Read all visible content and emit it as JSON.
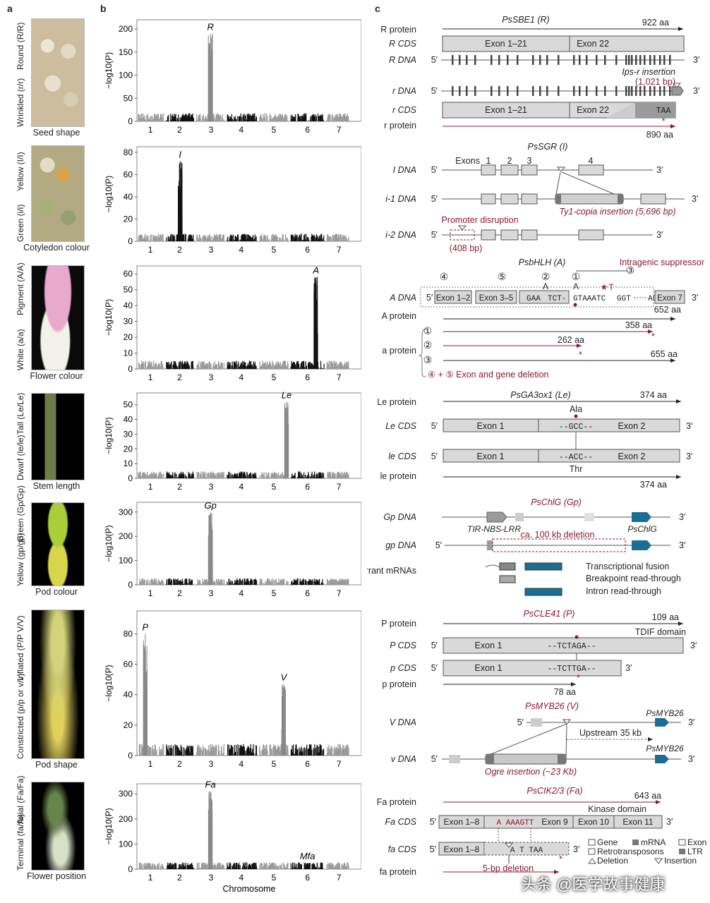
{
  "panel_letters": {
    "a": "a",
    "b": "b",
    "c": "c"
  },
  "traits": [
    {
      "genotype_top": "Round (R/R)",
      "genotype_bottom": "Wrinkled (r/r)",
      "caption": "Seed shape",
      "color": "#d7ccb4"
    },
    {
      "genotype_top": "Yellow (I/I)",
      "genotype_bottom": "Green (i/i)",
      "caption": "Cotyledon colour",
      "color": "#b9b27a"
    },
    {
      "genotype_top": "Pigment (A/A)",
      "genotype_bottom": "White (a/a)",
      "caption": "Flower colour",
      "color": "#1a1a1a"
    },
    {
      "genotype_top": "Tall (Le/Le)",
      "genotype_bottom": "Dwarf (le/le)",
      "caption": "Stem length",
      "color": "#000000"
    },
    {
      "genotype_top": "Green (Gp/Gp)",
      "genotype_bottom": "Yellow (gp/gp)",
      "caption": "Pod colour",
      "color": "#000000"
    },
    {
      "genotype_top": "Inflated (P/P V/V)",
      "genotype_bottom": "Constricted (p/p or v/v)",
      "caption": "Pod shape",
      "color": "#000000"
    },
    {
      "genotype_top": "Axial (Fa/Fa)",
      "genotype_bottom": "Terminal (fa/fa)",
      "caption": "Flower position",
      "color": "#000000"
    }
  ],
  "plots": {
    "ylabel": "−log10(P)",
    "xlabel": "Chromosome",
    "xticks": [
      "1",
      "2",
      "3",
      "4",
      "5",
      "6",
      "7"
    ],
    "panels": [
      {
        "yticks": [
          "0",
          "50",
          "100",
          "150",
          "200"
        ],
        "peaks": [
          "R"
        ]
      },
      {
        "yticks": [
          "0",
          "20",
          "40",
          "60",
          "80"
        ],
        "peaks": [
          "I"
        ]
      },
      {
        "yticks": [
          "0",
          "10",
          "20",
          "30",
          "40",
          "50",
          "60"
        ],
        "peaks": [
          "A"
        ]
      },
      {
        "yticks": [
          "0",
          "10",
          "20",
          "30",
          "40",
          "50"
        ],
        "peaks": [
          "Le"
        ]
      },
      {
        "yticks": [
          "0",
          "100",
          "200",
          "300"
        ],
        "peaks": [
          "Gp"
        ]
      },
      {
        "yticks": [
          "0",
          "20",
          "40",
          "60",
          "80"
        ],
        "peaks": [
          "P",
          "V"
        ]
      },
      {
        "yticks": [
          "0",
          "100",
          "200",
          "300"
        ],
        "peaks": [
          "Fa",
          "Mfa"
        ]
      }
    ]
  },
  "chart_data": [
    {
      "type": "scatter",
      "ylabel": "−log10(P)",
      "xlabel": "",
      "x_categories": [
        "1",
        "2",
        "3",
        "4",
        "5",
        "6",
        "7"
      ],
      "ylim": [
        0,
        220
      ],
      "peaks": [
        {
          "label": "R",
          "chromosome": "3",
          "value": 190
        }
      ]
    },
    {
      "type": "scatter",
      "ylabel": "−log10(P)",
      "xlabel": "",
      "x_categories": [
        "1",
        "2",
        "3",
        "4",
        "5",
        "6",
        "7"
      ],
      "ylim": [
        0,
        85
      ],
      "peaks": [
        {
          "label": "I",
          "chromosome": "2",
          "value": 72
        }
      ]
    },
    {
      "type": "scatter",
      "ylabel": "−log10(P)",
      "xlabel": "",
      "x_categories": [
        "1",
        "2",
        "3",
        "4",
        "5",
        "6",
        "7"
      ],
      "ylim": [
        0,
        65
      ],
      "peaks": [
        {
          "label": "A",
          "chromosome": "6",
          "value": 58
        }
      ]
    },
    {
      "type": "scatter",
      "ylabel": "−log10(P)",
      "xlabel": "",
      "x_categories": [
        "1",
        "2",
        "3",
        "4",
        "5",
        "6",
        "7"
      ],
      "ylim": [
        0,
        58
      ],
      "peaks": [
        {
          "label": "Le",
          "chromosome": "5",
          "value": 52
        }
      ]
    },
    {
      "type": "scatter",
      "ylabel": "−log10(P)",
      "xlabel": "",
      "x_categories": [
        "1",
        "2",
        "3",
        "4",
        "5",
        "6",
        "7"
      ],
      "ylim": [
        0,
        340
      ],
      "peaks": [
        {
          "label": "Gp",
          "chromosome": "3",
          "value": 300
        }
      ]
    },
    {
      "type": "scatter",
      "ylabel": "−log10(P)",
      "xlabel": "",
      "x_categories": [
        "1",
        "2",
        "3",
        "4",
        "5",
        "6",
        "7"
      ],
      "ylim": [
        0,
        95
      ],
      "peaks": [
        {
          "label": "P",
          "chromosome": "1",
          "value": 80
        },
        {
          "label": "V",
          "chromosome": "5",
          "value": 47
        }
      ]
    },
    {
      "type": "scatter",
      "ylabel": "−log10(P)",
      "xlabel": "Chromosome",
      "x_categories": [
        "1",
        "2",
        "3",
        "4",
        "5",
        "6",
        "7"
      ],
      "ylim": [
        0,
        340
      ],
      "peaks": [
        {
          "label": "Fa",
          "chromosome": "3",
          "value": 310
        },
        {
          "label": "Mfa",
          "chromosome": "6",
          "value": 25
        }
      ]
    }
  ],
  "genes": {
    "R": {
      "title": "PsSBE1 (R)",
      "aa_top": "922 aa",
      "aa_bottom": "890 aa",
      "rows": [
        "R protein",
        "R CDS",
        "R DNA",
        "r DNA",
        "r CDS",
        "r protein"
      ],
      "exon_a": "Exon 1–21",
      "exon_b": "Exon 22",
      "ins_label": "Ips-r insertion",
      "ins_size": "(1,021 bp)",
      "stop": "TAA",
      "end5": "5′",
      "end3": "3′"
    },
    "I": {
      "title": "PsSGR (I)",
      "rows": [
        "I DNA",
        "i-1 DNA",
        "i-2 DNA"
      ],
      "exons_label": "Exons",
      "exon_nums": [
        "1",
        "2",
        "3",
        "4"
      ],
      "ins_label": "Ty1-copia insertion (5,696 bp)",
      "promoter_label": "Promoter disruption",
      "promoter_size": "(408 bp)"
    },
    "A": {
      "title": "PsbHLH (A)",
      "suppressor": "Intragenic suppressor",
      "rows": [
        "A DNA",
        "A protein",
        "a protein"
      ],
      "exons": [
        "Exon 1–2",
        "Exon 3–5",
        "Exon 7"
      ],
      "seq": [
        "GAA",
        "TCT-",
        "GTAAATC",
        "GGT",
        "AG"
      ],
      "circles": [
        "④",
        "⑤",
        "②",
        "①",
        "③"
      ],
      "letters": [
        "A",
        "A",
        "T"
      ],
      "aa": [
        "652 aa",
        "358 aa",
        "262 aa",
        "655 aa"
      ],
      "a_rows": [
        "①",
        "②",
        "③"
      ],
      "deletion": "④ + ⑤ Exon and gene deletion"
    },
    "Le": {
      "title": "PsGA3ox1 (Le)",
      "aa_top": "374 aa",
      "aa_bottom": "374 aa",
      "rows": [
        "Le protein",
        "Le CDS",
        "le CDS",
        "le protein"
      ],
      "exon1": "Exon 1",
      "exon2": "Exon 2",
      "seq_top": "--GCC--",
      "seq_bottom": "--ACC--",
      "aa1": "Ala",
      "aa2": "Thr"
    },
    "Gp": {
      "title": "PsChlG (Gp)",
      "rows": [
        "Gp DNA",
        "gp DNA",
        "Aberrant mRNAs"
      ],
      "gene_left": "TIR-NBS-LRR",
      "gene_right": "PsChlG",
      "deletion": "ca. 100 kb deletion",
      "mrnas": [
        "Transcriptional fusion",
        "Breakpoint read-through",
        "Intron read-through"
      ]
    },
    "P": {
      "title": "PsCLE41 (P)",
      "aa_top": "109 aa",
      "domain": "TDIF domain",
      "aa_bottom": "78 aa",
      "rows": [
        "P protein",
        "P CDS",
        "p CDS",
        "p protein"
      ],
      "exon": "Exon 1",
      "seq_top": "--TCTAGA--",
      "seq_bottom": "--TCTTGA--"
    },
    "V": {
      "title": "PsMYB26 (V)",
      "rows": [
        "V DNA",
        "v DNA"
      ],
      "gene": "PsMYB26",
      "upstream": "Upstream 35 kb",
      "ins_label": "Ogre insertion (~23 Kb)"
    },
    "Fa": {
      "title": "PsCIK2/3 (Fa)",
      "aa_top": "643 aa",
      "domain": "Kinase domain",
      "rows": [
        "Fa protein",
        "Fa CDS",
        "fa CDS",
        "fa protein"
      ],
      "exons": [
        "Exon 1–8",
        "Exon 9",
        "Exon 10",
        "Exon 11"
      ],
      "seq_top": "A AAAGTT",
      "seq_bottom": "A T TAA",
      "deletion": "5-bp deletion"
    }
  },
  "legend": {
    "items": [
      "Gene",
      "mRNA",
      "Exon",
      "Retrotransposons",
      "LTR",
      "Deletion",
      "Insertion"
    ]
  },
  "watermark": "头条 @医学故事健康",
  "colors": {
    "accent": "#8b1a2b",
    "exon": "#d9d9d9",
    "gene_blue": "#1a6e94",
    "dark_gray": "#808080"
  }
}
